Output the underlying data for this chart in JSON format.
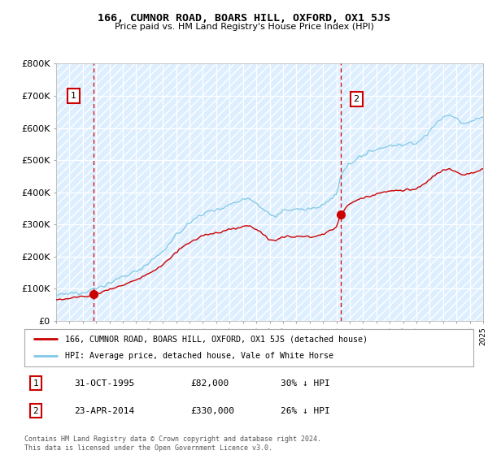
{
  "title": "166, CUMNOR ROAD, BOARS HILL, OXFORD, OX1 5JS",
  "subtitle": "Price paid vs. HM Land Registry's House Price Index (HPI)",
  "ylim": [
    0,
    800000
  ],
  "yticks": [
    0,
    100000,
    200000,
    300000,
    400000,
    500000,
    600000,
    700000,
    800000
  ],
  "ytick_labels": [
    "£0",
    "£100K",
    "£200K",
    "£300K",
    "£400K",
    "£500K",
    "£600K",
    "£700K",
    "£800K"
  ],
  "hpi_color": "#7ec8e3",
  "price_color": "#cc0000",
  "marker1_date": 1995.83,
  "marker1_price": 82000,
  "marker2_date": 2014.31,
  "marker2_price": 330000,
  "legend_label_price": "166, CUMNOR ROAD, BOARS HILL, OXFORD, OX1 5JS (detached house)",
  "legend_label_hpi": "HPI: Average price, detached house, Vale of White Horse",
  "footnote": "Contains HM Land Registry data © Crown copyright and database right 2024.\nThis data is licensed under the Open Government Licence v3.0.",
  "table_rows": [
    {
      "num": "1",
      "date": "31-OCT-1995",
      "price": "£82,000",
      "vs_hpi": "30% ↓ HPI"
    },
    {
      "num": "2",
      "date": "23-APR-2014",
      "price": "£330,000",
      "vs_hpi": "26% ↓ HPI"
    }
  ]
}
